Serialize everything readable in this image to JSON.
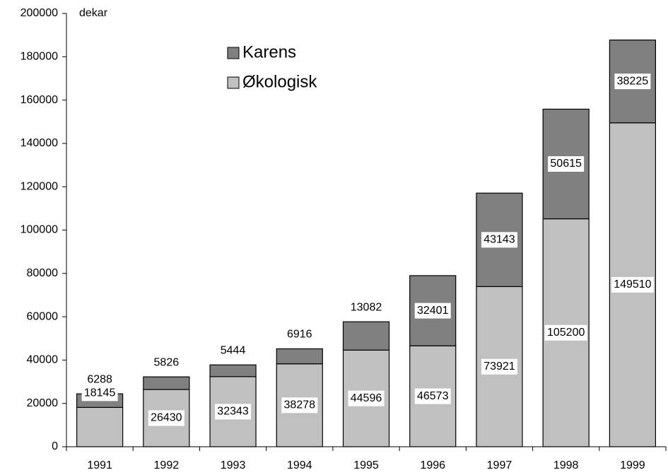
{
  "chart_data": {
    "type": "stacked_bar",
    "y_label": "dekar",
    "categories": [
      "1991",
      "1992",
      "1993",
      "1994",
      "1995",
      "1996",
      "1997",
      "1998",
      "1999"
    ],
    "series": [
      {
        "name": "Økologisk",
        "color": "#c0c0c0",
        "values": [
          18145,
          26430,
          32343,
          38278,
          44596,
          46573,
          73921,
          105200,
          149510
        ]
      },
      {
        "name": "Karens",
        "color": "#808080",
        "values": [
          6288,
          5826,
          5444,
          6916,
          13082,
          32401,
          43143,
          50615,
          38225
        ]
      }
    ],
    "ylim": [
      0,
      200000
    ],
    "yticks": [
      0,
      20000,
      40000,
      60000,
      80000,
      100000,
      120000,
      140000,
      160000,
      180000,
      200000
    ],
    "legend": "top-left"
  }
}
